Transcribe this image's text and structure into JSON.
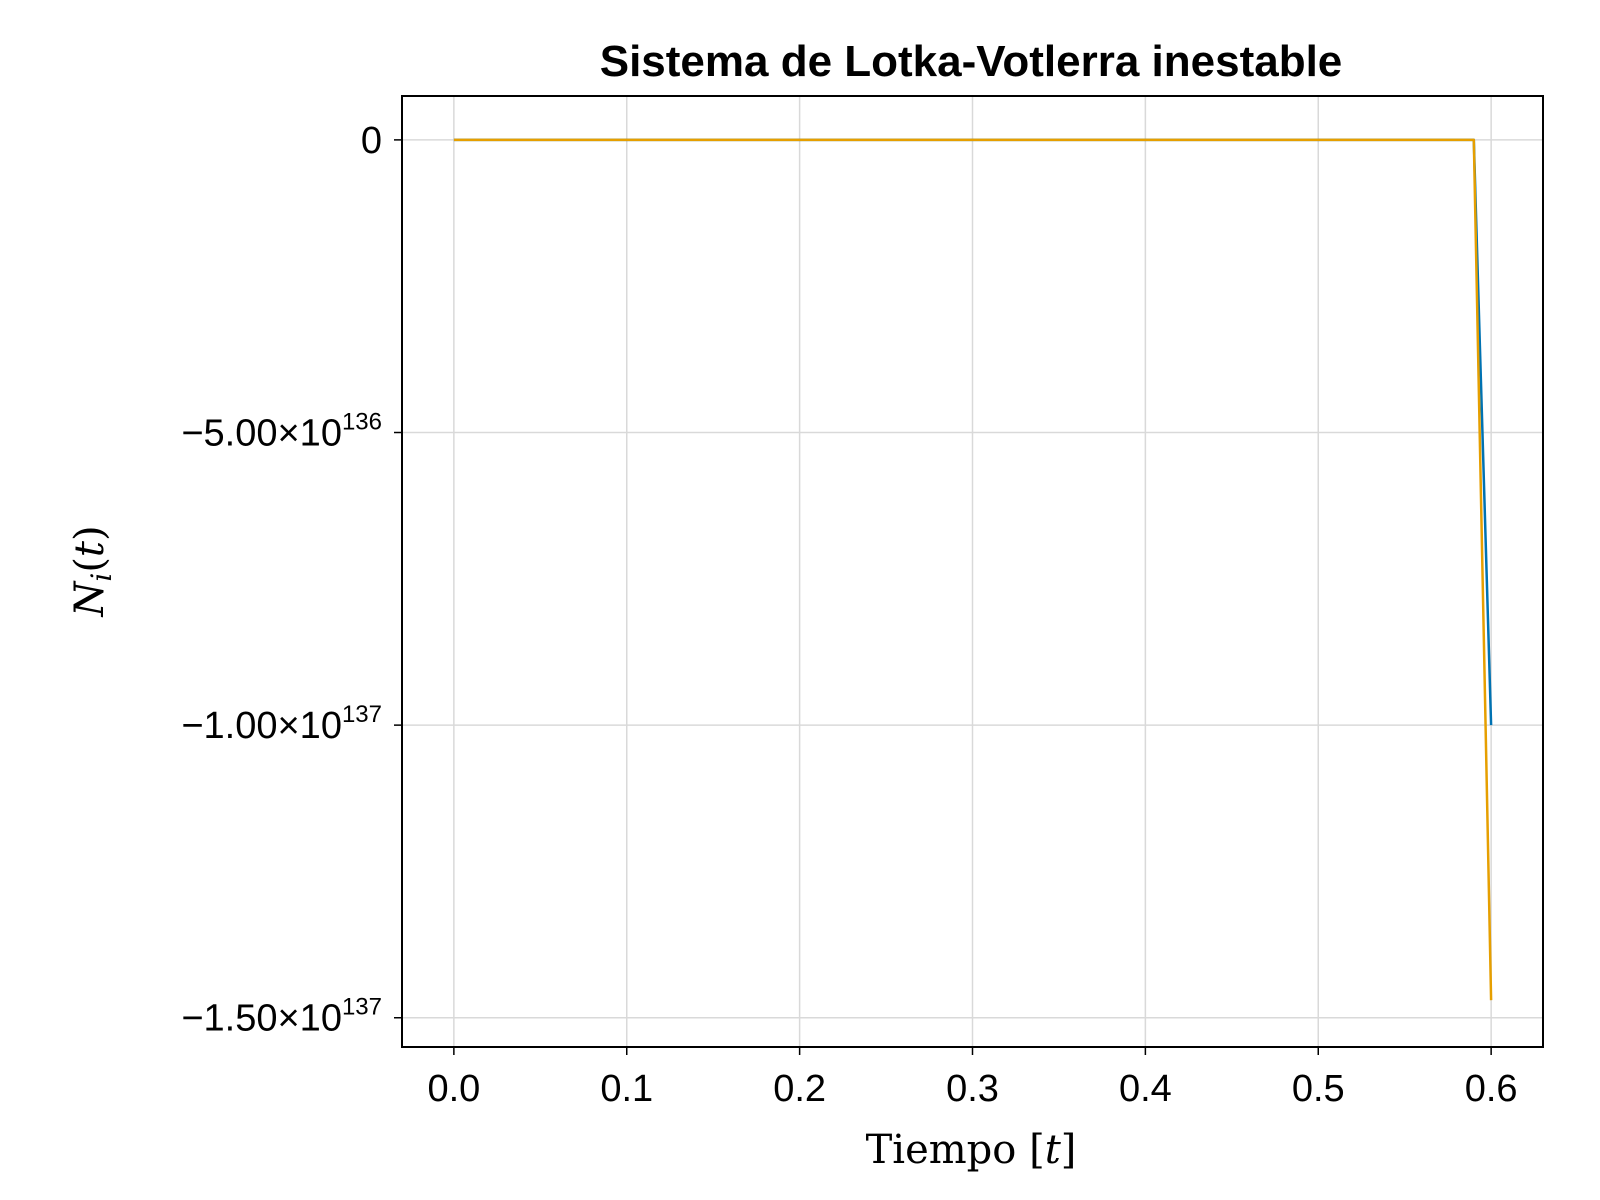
{
  "chart_data": {
    "type": "line",
    "title": "Sistema de Lotka-Votlerra inestable",
    "xlabel": "Tiempo [t]",
    "ylabel": "N_i(t)",
    "xlim": [
      -0.03,
      0.63
    ],
    "ylim": [
      -1.55e+137,
      7.5e+135
    ],
    "xticks": [
      0.0,
      0.1,
      0.2,
      0.3,
      0.4,
      0.5,
      0.6
    ],
    "xtick_labels": [
      "0.0",
      "0.1",
      "0.2",
      "0.3",
      "0.4",
      "0.5",
      "0.6"
    ],
    "yticks": [
      {
        "value": 0,
        "mantissa": "0",
        "exponent": ""
      },
      {
        "value": -5e+136,
        "mantissa": "−5.00×10",
        "exponent": "136"
      },
      {
        "value": -1e+137,
        "mantissa": "−1.00×10",
        "exponent": "137"
      },
      {
        "value": -1.5e+137,
        "mantissa": "−1.50×10",
        "exponent": "137"
      }
    ],
    "grid": true,
    "legend": "none",
    "series": [
      {
        "color": "#0072b2",
        "x": [
          0.0,
          0.59,
          0.6
        ],
        "y": [
          0,
          0,
          -1e+137
        ]
      },
      {
        "color": "#e69f00",
        "x": [
          0.0,
          0.59,
          0.6
        ],
        "y": [
          0,
          0,
          -1.47e+137
        ]
      }
    ]
  }
}
